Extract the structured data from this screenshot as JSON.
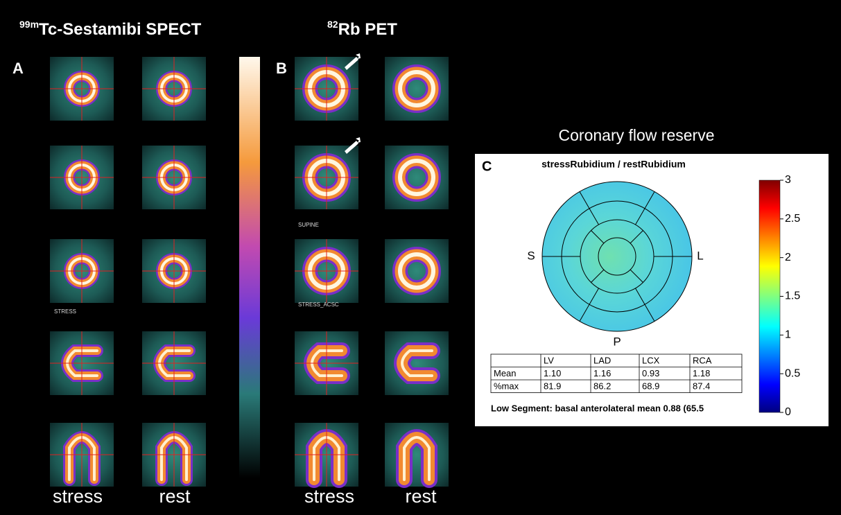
{
  "panel_a": {
    "label": "A",
    "title": {
      "superscript": "99m",
      "text": "Tc-Sestamibi SPECT"
    },
    "image_label": "STRESS",
    "columns": [
      "stress",
      "rest"
    ]
  },
  "panel_b": {
    "label": "B",
    "title": {
      "superscript": "82",
      "text": "Rb PET"
    },
    "image_labels": [
      "SUPINE",
      "STRESS_ACSC"
    ],
    "columns": [
      "stress",
      "rest"
    ]
  },
  "panel_c": {
    "heading": "Coronary flow reserve",
    "label": "C",
    "subtitle": "stressRubidium / restRubidium",
    "directions": {
      "septal": "S",
      "lateral": "L",
      "posterior": "P"
    },
    "colorbar_ticks": [
      3,
      2.5,
      2,
      1.5,
      1,
      0.5,
      0
    ],
    "table": {
      "header": [
        "LV",
        "LAD",
        "LCX",
        "RCA"
      ],
      "rows": [
        [
          "Mean",
          "1.10",
          "1.16",
          "0.93",
          "1.18"
        ],
        [
          "%max",
          "81.9",
          "86.2",
          "68.9",
          "87.4"
        ]
      ]
    },
    "note": "Low Segment: basal anterolateral mean 0.88 (65.5"
  }
}
